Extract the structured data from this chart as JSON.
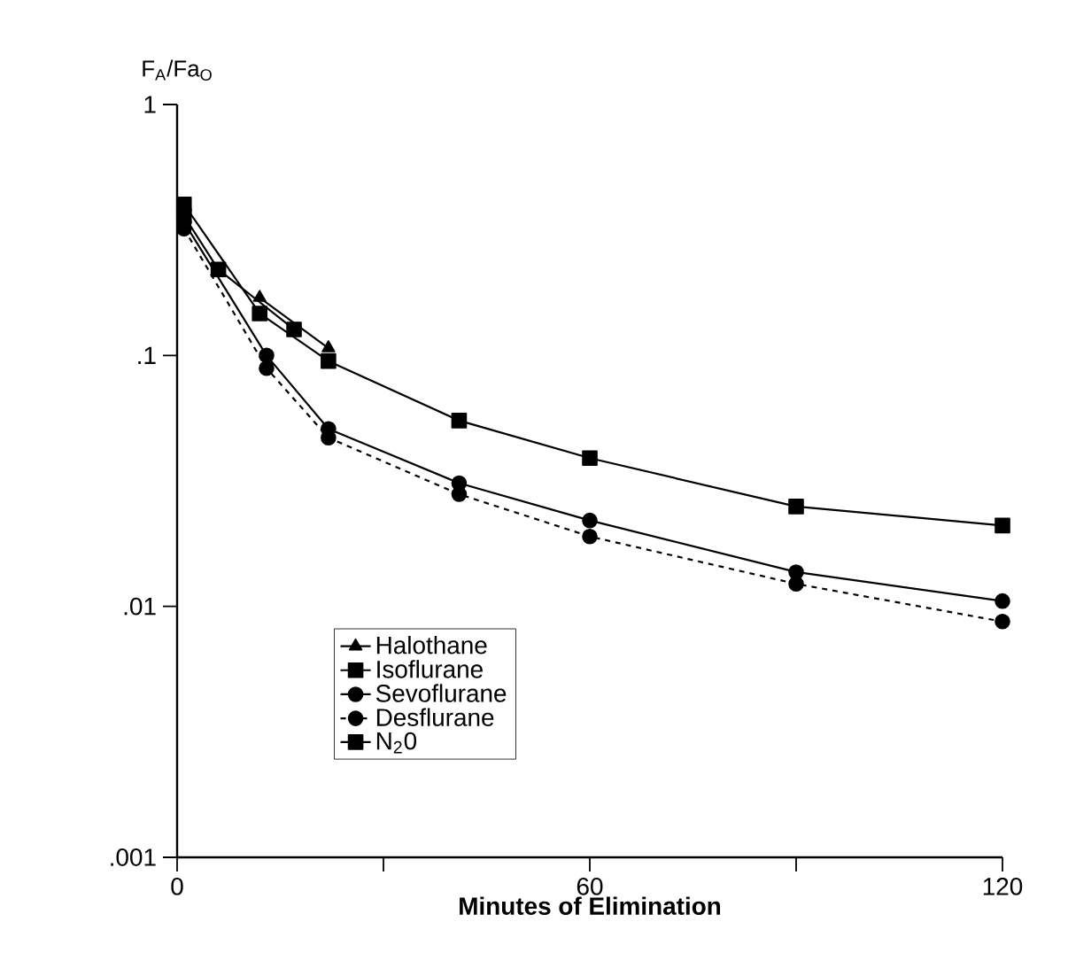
{
  "chart_data": {
    "type": "line",
    "xlabel": "Minutes of Elimination",
    "ylabel": "F$_{A}$/Fa$_{O}$",
    "log": "y",
    "xlim": [
      0,
      120
    ],
    "xticks": [
      0,
      {
        "value": 30,
        "label": null
      },
      60,
      {
        "value": 90,
        "label": null
      },
      120
    ],
    "ylim": [
      0.001,
      1
    ],
    "yticks": [
      {
        "value": 0.001,
        "label": ".001"
      },
      {
        "value": 0.01,
        "label": ".01"
      },
      {
        "value": 0.1,
        "label": ".1"
      },
      1
    ],
    "grid": false,
    "legend": "bottom left",
    "series": [
      {
        "name": "Halothane",
        "color": "#000000",
        "marker": "triangle",
        "line_style": "solid",
        "x": [
          12,
          22
        ],
        "values": [
          0.17,
          0.107
        ]
      },
      {
        "name": "Isoflurane",
        "color": "#000000",
        "marker": "square",
        "line_style": "solid",
        "x": [
          1,
          12,
          22,
          41,
          60,
          90,
          120
        ],
        "values": [
          0.4,
          0.147,
          0.095,
          0.055,
          0.039,
          0.025,
          0.021
        ]
      },
      {
        "name": "Sevoflurane",
        "color": "#000000",
        "marker": "circle",
        "line_style": "solid",
        "x": [
          1,
          13,
          22,
          41,
          60,
          90,
          120
        ],
        "values": [
          0.34,
          0.1,
          0.051,
          0.031,
          0.022,
          0.0137,
          0.0105
        ]
      },
      {
        "name": "Desflurane",
        "color": "#000000",
        "marker": "circle",
        "line_style": "dashed",
        "x": [
          1,
          13,
          22,
          41,
          60,
          90,
          120
        ],
        "values": [
          0.32,
          0.089,
          0.047,
          0.028,
          0.019,
          0.0123,
          0.0087
        ]
      },
      {
        "name": "N$_{2}$0",
        "color": "#000000",
        "marker": "square",
        "line_style": "solid",
        "x": [
          1,
          6,
          17
        ],
        "values": [
          0.36,
          0.22,
          0.127
        ]
      }
    ]
  }
}
